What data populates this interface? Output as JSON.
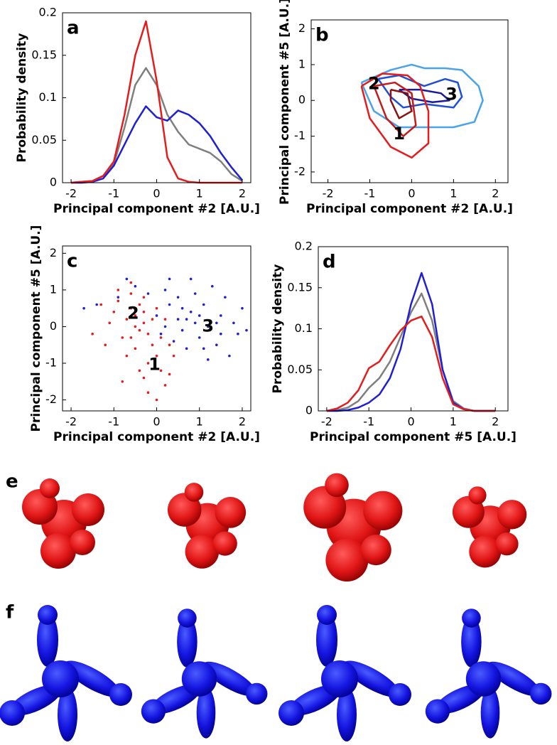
{
  "chart_data": [
    {
      "type": "line",
      "label": "a",
      "x_label": "Principal component #2 [A.U.]",
      "y_label": "Probability density",
      "x": [
        -2,
        -1.75,
        -1.5,
        -1.25,
        -1,
        -0.75,
        -0.5,
        -0.25,
        0,
        0.25,
        0.5,
        0.75,
        1,
        1.25,
        1.5,
        1.75,
        2
      ],
      "xlim": [
        -2.2,
        2.2
      ],
      "xticks": [
        -2,
        -1,
        0,
        1,
        2
      ],
      "ylim": [
        0,
        0.2
      ],
      "yticks": [
        0,
        0.05,
        0.1,
        0.15,
        0.2
      ],
      "series": [
        {
          "color": "#7f7f7f",
          "values": [
            0,
            0.001,
            0.002,
            0.008,
            0.022,
            0.065,
            0.115,
            0.135,
            0.115,
            0.08,
            0.06,
            0.045,
            0.04,
            0.035,
            0.025,
            0.01,
            0.002
          ]
        },
        {
          "color": "#1f1fd6",
          "values": [
            0,
            0,
            0.001,
            0.005,
            0.02,
            0.045,
            0.07,
            0.09,
            0.077,
            0.073,
            0.085,
            0.08,
            0.07,
            0.055,
            0.035,
            0.018,
            0.003
          ]
        },
        {
          "color": "#e51c1c",
          "values": [
            0,
            0.001,
            0.002,
            0.008,
            0.025,
            0.08,
            0.15,
            0.19,
            0.12,
            0.03,
            0.005,
            0.001,
            0,
            0,
            0,
            0,
            0
          ]
        }
      ]
    },
    {
      "type": "contour",
      "label": "b",
      "x_label": "Principal component #2 [A.U.]",
      "y_label": "Principal component #5 [A.U.]",
      "xlim": [
        -2.4,
        2.3
      ],
      "xticks": [
        -2,
        -1,
        0,
        1,
        2
      ],
      "ylim": [
        -2.3,
        2.25
      ],
      "yticks": [
        -2,
        -1,
        0,
        1,
        2
      ],
      "series": [
        {
          "color": "#4aa3e8",
          "x": [
            -1.2,
            -0.5,
            0,
            0.3,
            0.8,
            1.2,
            1.6,
            1.7,
            1.5,
            1.0,
            0.5,
            -0.3,
            -0.9,
            -1.2
          ],
          "values": [
            0.5,
            0.85,
            1.0,
            0.9,
            0.9,
            0.85,
            0.4,
            0,
            -0.6,
            -0.75,
            -0.75,
            -0.75,
            -0.3,
            0.5
          ]
        },
        {
          "color": "#1f4fd6",
          "x": [
            -0.8,
            -0.3,
            0.3,
            0.8,
            1.1,
            1.2,
            1.0,
            0.3,
            -0.2,
            -0.5,
            -0.8
          ],
          "values": [
            0.6,
            0.7,
            0.4,
            0.6,
            0.5,
            0.1,
            -0.2,
            -0.1,
            -0.2,
            0.1,
            0.6
          ]
        },
        {
          "color": "#1a1aa0",
          "x": [
            -0.3,
            0.2,
            0.7,
            0.9,
            0.5,
            0,
            -0.3
          ],
          "values": [
            0.3,
            0.3,
            0.2,
            0,
            -0.05,
            0.05,
            0.3
          ]
        },
        {
          "color": "#e51c1c",
          "x": [
            -1.2,
            -0.7,
            -0.1,
            0.2,
            0.4,
            0.4,
            0,
            -0.5,
            -1.0,
            -1.2
          ],
          "values": [
            0.4,
            0.75,
            0.7,
            0.4,
            -0.3,
            -1.2,
            -1.6,
            -1.3,
            -0.5,
            0.4
          ]
        },
        {
          "color": "#c41a1a",
          "x": [
            -0.9,
            -0.4,
            0,
            0.1,
            -0.2,
            -0.6,
            -0.9
          ],
          "values": [
            0.4,
            0.5,
            0.2,
            -0.7,
            -1.0,
            -0.5,
            0.4
          ]
        },
        {
          "color": "#8b1010",
          "x": [
            -0.5,
            -0.1,
            0,
            -0.3,
            -0.5,
            -0.5
          ],
          "values": [
            0.3,
            0.2,
            -0.3,
            -0.5,
            0,
            0.3
          ]
        }
      ],
      "annotations": [
        {
          "text": "2",
          "x": -0.9,
          "y": 0.45
        },
        {
          "text": "3",
          "x": 0.95,
          "y": 0.15
        },
        {
          "text": "1",
          "x": -0.3,
          "y": -0.95
        }
      ]
    },
    {
      "type": "scatter",
      "label": "c",
      "x_label": "Principal component #2 [A.U.]",
      "y_label": "Principal component #5 [A.U.]",
      "xlim": [
        -2.2,
        2.2
      ],
      "xticks": [
        -2,
        -1,
        0,
        1,
        2
      ],
      "ylim": [
        -2.3,
        2.2
      ],
      "yticks": [
        -2,
        -1,
        0,
        1,
        2
      ],
      "series": [
        {
          "color": "#1f1fd6",
          "x": [
            0.5,
            0.8,
            1.2,
            1.0,
            0.3,
            0.6,
            1.5,
            1.8,
            1.4,
            0.9,
            0.2,
            -0.2,
            0,
            1.6,
            1.9,
            0.7,
            0.4,
            1.1,
            1.3,
            -0.5,
            -0.9,
            -1.4,
            0.1,
            0.5,
            0.9,
            1.2,
            2.0,
            1.7,
            0.8,
            0.3,
            -0.7,
            1.0,
            0.6,
            1.4,
            0.2,
            1.1,
            2.1,
            -1.7,
            0.7,
            1.5
          ],
          "values": [
            0.2,
            0.4,
            0,
            -0.3,
            0.6,
            -0.1,
            0.3,
            0.1,
            -0.5,
            0.9,
            1.0,
            0.9,
            0.3,
            0.8,
            -0.2,
            -0.6,
            -0.4,
            0.6,
            1.1,
            1.1,
            0.8,
            0.6,
            -0.2,
            0.8,
            0.1,
            -0.9,
            0.5,
            -0.8,
            1.3,
            1.3,
            1.3,
            0.3,
            0.5,
            0.1,
            0,
            -0.6,
            -0.1,
            0.5,
            0.2,
            -0.2
          ]
        },
        {
          "color": "#e51c1c",
          "x": [
            -0.5,
            -0.3,
            -0.6,
            -0.2,
            -0.4,
            -0.7,
            -0.1,
            0,
            -0.2,
            0.1,
            -0.3,
            0.2,
            -0.5,
            -0.8,
            -1.0,
            -1.1,
            -0.9,
            -0.6,
            -0.3,
            0,
            0.2,
            0.1,
            -0.4,
            -0.7,
            -1.2,
            -1.5,
            -0.2,
            0.3,
            0.4,
            -0.6,
            -0.9,
            -0.4,
            0,
            -0.8,
            0.3,
            -1.3,
            -0.5,
            -0.3,
            -0.1,
            -0.6
          ],
          "values": [
            0.3,
            0.1,
            0.5,
            -0.2,
            -0.1,
            0.2,
            -0.5,
            -0.8,
            -1.0,
            -1.2,
            -1.4,
            -1.6,
            -0.6,
            -0.3,
            0.4,
            0.1,
            0.7,
            0.9,
            0.8,
            0.5,
            0.2,
            -0.3,
            0.6,
            -0.8,
            -0.5,
            -0.2,
            -1.8,
            -1.3,
            -0.8,
            1.2,
            1.0,
            -1.2,
            -2.0,
            -1.5,
            -0.5,
            0.6,
            0,
            0.4,
            0.2,
            -0.3
          ]
        }
      ],
      "annotations": [
        {
          "text": "2",
          "x": -0.55,
          "y": 0.35
        },
        {
          "text": "3",
          "x": 1.2,
          "y": 0
        },
        {
          "text": "1",
          "x": -0.05,
          "y": -1.05
        }
      ]
    },
    {
      "type": "line",
      "label": "d",
      "x_label": "Principal component #5 [A.U.]",
      "y_label": "Probability density",
      "x": [
        -2,
        -1.75,
        -1.5,
        -1.25,
        -1,
        -0.75,
        -0.5,
        -0.25,
        0,
        0.25,
        0.5,
        0.75,
        1,
        1.25,
        1.5,
        1.75,
        2
      ],
      "xlim": [
        -2.2,
        2.3
      ],
      "xticks": [
        -2,
        -1,
        0,
        1,
        2
      ],
      "ylim": [
        0,
        0.2
      ],
      "yticks": [
        0,
        0.05,
        0.1,
        0.15,
        0.2
      ],
      "series": [
        {
          "color": "#7f7f7f",
          "values": [
            0,
            0.001,
            0.004,
            0.012,
            0.028,
            0.04,
            0.06,
            0.09,
            0.12,
            0.143,
            0.11,
            0.05,
            0.012,
            0.003,
            0,
            0,
            0
          ]
        },
        {
          "color": "#1f1fd6",
          "values": [
            0,
            0,
            0.001,
            0.004,
            0.01,
            0.02,
            0.04,
            0.075,
            0.13,
            0.168,
            0.13,
            0.05,
            0.01,
            0.002,
            0,
            0,
            0
          ]
        },
        {
          "color": "#e51c1c",
          "values": [
            0,
            0.003,
            0.01,
            0.025,
            0.052,
            0.06,
            0.08,
            0.098,
            0.11,
            0.115,
            0.09,
            0.04,
            0.008,
            0.002,
            0,
            0,
            0
          ]
        }
      ]
    }
  ],
  "render_rows": [
    {
      "label": "e"
    },
    {
      "label": "f"
    }
  ]
}
